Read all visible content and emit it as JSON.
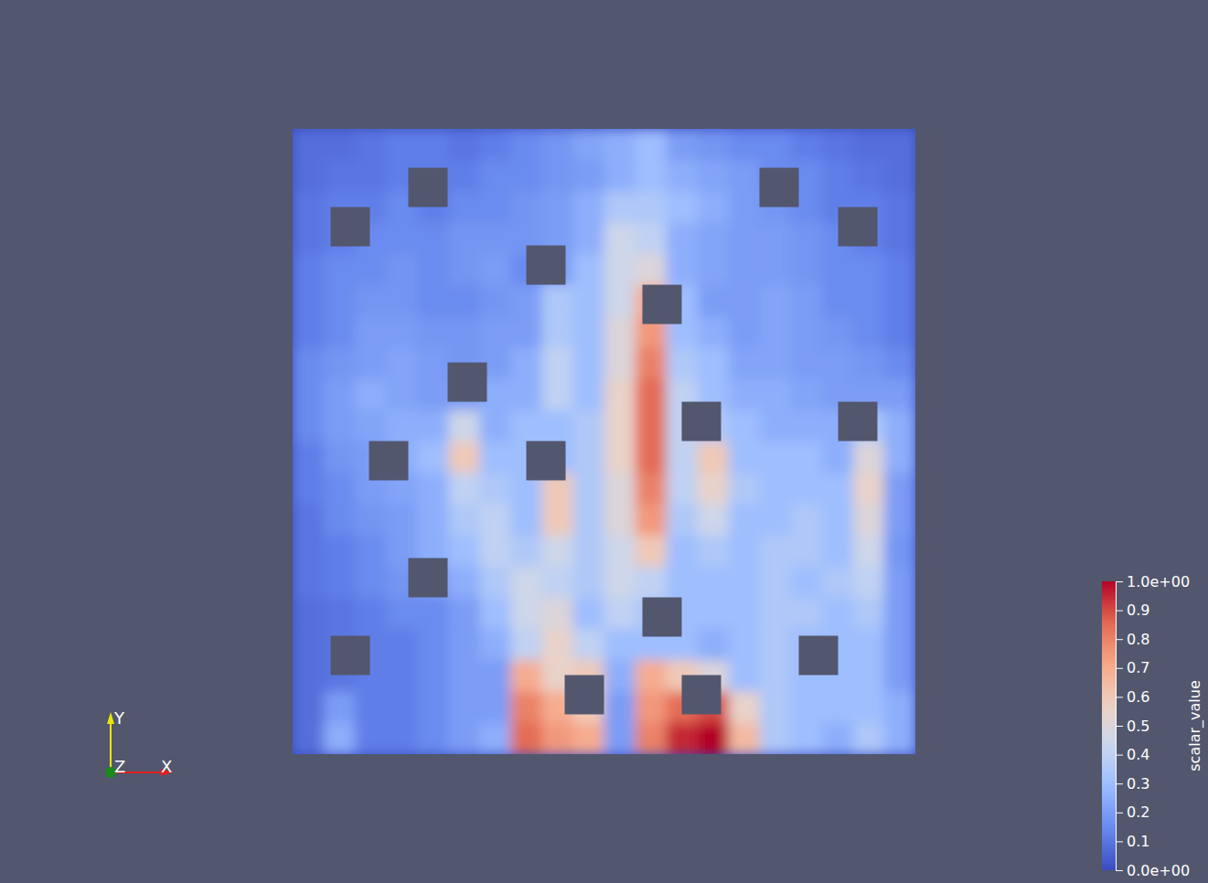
{
  "chart_data": {
    "type": "heatmap",
    "cells": [
      [
        0.08,
        0.08,
        0.1,
        0.12,
        0.12,
        0.1,
        0.12,
        0.15,
        0.18,
        0.22,
        0.25,
        0.3,
        0.2,
        0.18,
        0.15,
        0.15,
        0.12,
        0.1,
        0.08,
        0.08
      ],
      [
        0.08,
        0.1,
        0.1,
        0.12,
        0.12,
        0.12,
        0.15,
        0.15,
        0.18,
        0.2,
        0.25,
        0.3,
        0.25,
        0.22,
        0.2,
        0.15,
        0.15,
        0.12,
        0.1,
        0.08
      ],
      [
        0.1,
        0.12,
        0.12,
        0.15,
        0.12,
        0.15,
        0.15,
        0.18,
        0.2,
        0.25,
        0.35,
        0.35,
        0.3,
        0.25,
        0.2,
        0.18,
        0.15,
        0.12,
        0.12,
        0.1
      ],
      [
        0.1,
        0.12,
        0.15,
        0.15,
        0.15,
        0.18,
        0.18,
        0.18,
        0.2,
        0.25,
        0.45,
        0.4,
        0.25,
        0.22,
        0.2,
        0.2,
        0.18,
        0.15,
        0.12,
        0.1
      ],
      [
        0.12,
        0.15,
        0.15,
        0.18,
        0.15,
        0.18,
        0.2,
        0.15,
        0.2,
        0.3,
        0.45,
        0.5,
        0.25,
        0.22,
        0.2,
        0.2,
        0.18,
        0.15,
        0.15,
        0.12
      ],
      [
        0.12,
        0.15,
        0.18,
        0.18,
        0.15,
        0.15,
        0.18,
        0.2,
        0.35,
        0.3,
        0.45,
        0.7,
        0.3,
        0.2,
        0.2,
        0.22,
        0.2,
        0.15,
        0.15,
        0.12
      ],
      [
        0.12,
        0.15,
        0.2,
        0.2,
        0.18,
        0.18,
        0.2,
        0.2,
        0.35,
        0.3,
        0.5,
        0.75,
        0.3,
        0.25,
        0.2,
        0.22,
        0.2,
        0.18,
        0.15,
        0.12
      ],
      [
        0.15,
        0.18,
        0.2,
        0.22,
        0.2,
        0.18,
        0.2,
        0.25,
        0.4,
        0.3,
        0.5,
        0.8,
        0.35,
        0.3,
        0.22,
        0.22,
        0.2,
        0.2,
        0.18,
        0.15
      ],
      [
        0.15,
        0.2,
        0.25,
        0.22,
        0.2,
        0.2,
        0.25,
        0.25,
        0.4,
        0.3,
        0.55,
        0.85,
        0.4,
        0.3,
        0.25,
        0.25,
        0.22,
        0.2,
        0.2,
        0.2
      ],
      [
        0.15,
        0.2,
        0.22,
        0.25,
        0.25,
        0.45,
        0.25,
        0.3,
        0.3,
        0.35,
        0.55,
        0.85,
        0.4,
        0.35,
        0.3,
        0.25,
        0.25,
        0.25,
        0.35,
        0.25
      ],
      [
        0.12,
        0.18,
        0.2,
        0.25,
        0.3,
        0.6,
        0.3,
        0.3,
        0.3,
        0.35,
        0.55,
        0.85,
        0.4,
        0.6,
        0.3,
        0.3,
        0.3,
        0.25,
        0.5,
        0.25
      ],
      [
        0.12,
        0.15,
        0.2,
        0.22,
        0.25,
        0.4,
        0.35,
        0.3,
        0.6,
        0.35,
        0.5,
        0.8,
        0.4,
        0.55,
        0.35,
        0.3,
        0.3,
        0.3,
        0.55,
        0.2
      ],
      [
        0.1,
        0.15,
        0.18,
        0.2,
        0.25,
        0.35,
        0.4,
        0.3,
        0.6,
        0.35,
        0.5,
        0.75,
        0.35,
        0.45,
        0.3,
        0.3,
        0.35,
        0.3,
        0.5,
        0.2
      ],
      [
        0.1,
        0.12,
        0.15,
        0.2,
        0.25,
        0.3,
        0.4,
        0.35,
        0.45,
        0.35,
        0.45,
        0.6,
        0.3,
        0.35,
        0.3,
        0.35,
        0.35,
        0.3,
        0.45,
        0.18
      ],
      [
        0.1,
        0.12,
        0.15,
        0.18,
        0.2,
        0.25,
        0.35,
        0.45,
        0.4,
        0.35,
        0.45,
        0.4,
        0.3,
        0.3,
        0.3,
        0.35,
        0.3,
        0.35,
        0.4,
        0.2
      ],
      [
        0.08,
        0.1,
        0.12,
        0.15,
        0.15,
        0.2,
        0.3,
        0.45,
        0.5,
        0.3,
        0.4,
        0.35,
        0.3,
        0.3,
        0.3,
        0.35,
        0.35,
        0.3,
        0.35,
        0.2
      ],
      [
        0.08,
        0.1,
        0.12,
        0.12,
        0.15,
        0.2,
        0.25,
        0.4,
        0.55,
        0.4,
        0.3,
        0.3,
        0.3,
        0.25,
        0.3,
        0.35,
        0.3,
        0.3,
        0.3,
        0.2
      ],
      [
        0.08,
        0.1,
        0.12,
        0.12,
        0.15,
        0.2,
        0.2,
        0.7,
        0.55,
        0.6,
        0.25,
        0.7,
        0.6,
        0.5,
        0.3,
        0.35,
        0.3,
        0.3,
        0.3,
        0.2
      ],
      [
        0.08,
        0.2,
        0.12,
        0.12,
        0.15,
        0.2,
        0.2,
        0.8,
        0.7,
        0.6,
        0.2,
        0.75,
        0.85,
        0.9,
        0.55,
        0.35,
        0.3,
        0.3,
        0.3,
        0.25
      ],
      [
        0.08,
        0.25,
        0.12,
        0.12,
        0.15,
        0.2,
        0.25,
        0.85,
        0.75,
        0.7,
        0.2,
        0.8,
        0.95,
        1.0,
        0.65,
        0.35,
        0.3,
        0.25,
        0.35,
        0.25
      ]
    ],
    "colorbar": {
      "title": "scalar_value",
      "range": [
        0,
        1
      ],
      "ticks": [
        {
          "value": 0,
          "label": "0.0e+00"
        },
        0.1,
        0.2,
        0.3,
        0.4,
        0.5,
        0.6,
        0.7,
        0.8,
        0.9,
        {
          "value": 1,
          "label": "1.0e+00"
        }
      ]
    },
    "tick_labels": false,
    "axes_triad": {
      "x": "X",
      "y": "Y",
      "z": "Z"
    }
  }
}
